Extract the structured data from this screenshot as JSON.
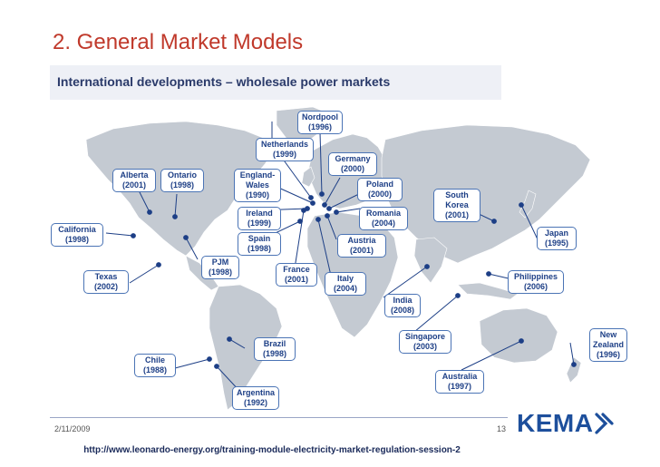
{
  "title": "2. General Market Models",
  "subtitle": "International developments – wholesale power markets",
  "markets": [
    {
      "name": "Nordpool",
      "year": "(1996)"
    },
    {
      "name": "Netherlands",
      "year": "(1999)"
    },
    {
      "name": "Germany",
      "year": "(2000)"
    },
    {
      "name": "Alberta",
      "year": "(2001)"
    },
    {
      "name": "Ontario",
      "year": "(1998)"
    },
    {
      "name": "England-Wales",
      "year": "(1990)"
    },
    {
      "name": "Poland",
      "year": "(2000)"
    },
    {
      "name": "South Korea",
      "year": "(2001)"
    },
    {
      "name": "Ireland",
      "year": "(1999)"
    },
    {
      "name": "Romania",
      "year": "(2004)"
    },
    {
      "name": "California",
      "year": "(1998)"
    },
    {
      "name": "Spain",
      "year": "(1998)"
    },
    {
      "name": "Austria",
      "year": "(2001)"
    },
    {
      "name": "Japan",
      "year": "(1995)"
    },
    {
      "name": "PJM",
      "year": "(1998)"
    },
    {
      "name": "France",
      "year": "(2001)"
    },
    {
      "name": "Texas",
      "year": "(2002)"
    },
    {
      "name": "Italy",
      "year": "(2004)"
    },
    {
      "name": "Philippines",
      "year": "(2006)"
    },
    {
      "name": "India",
      "year": "(2008)"
    },
    {
      "name": "Singapore",
      "year": "(2003)"
    },
    {
      "name": "New Zealand",
      "year": "(1996)"
    },
    {
      "name": "Brazil",
      "year": "(1998)"
    },
    {
      "name": "Chile",
      "year": "(1988)"
    },
    {
      "name": "Australia",
      "year": "(1997)"
    },
    {
      "name": "Argentina",
      "year": "(1992)"
    }
  ],
  "footer": {
    "date": "2/11/2009",
    "page": "13",
    "url": "http://www.leonardo-energy.org/training-module-electricity-market-regulation-session-2"
  },
  "logo": {
    "text": "KEMA",
    "color": "#1d4f9c"
  },
  "colors": {
    "title": "#c0392b",
    "label_border": "#4b74b5",
    "map": "#c4cad2"
  }
}
